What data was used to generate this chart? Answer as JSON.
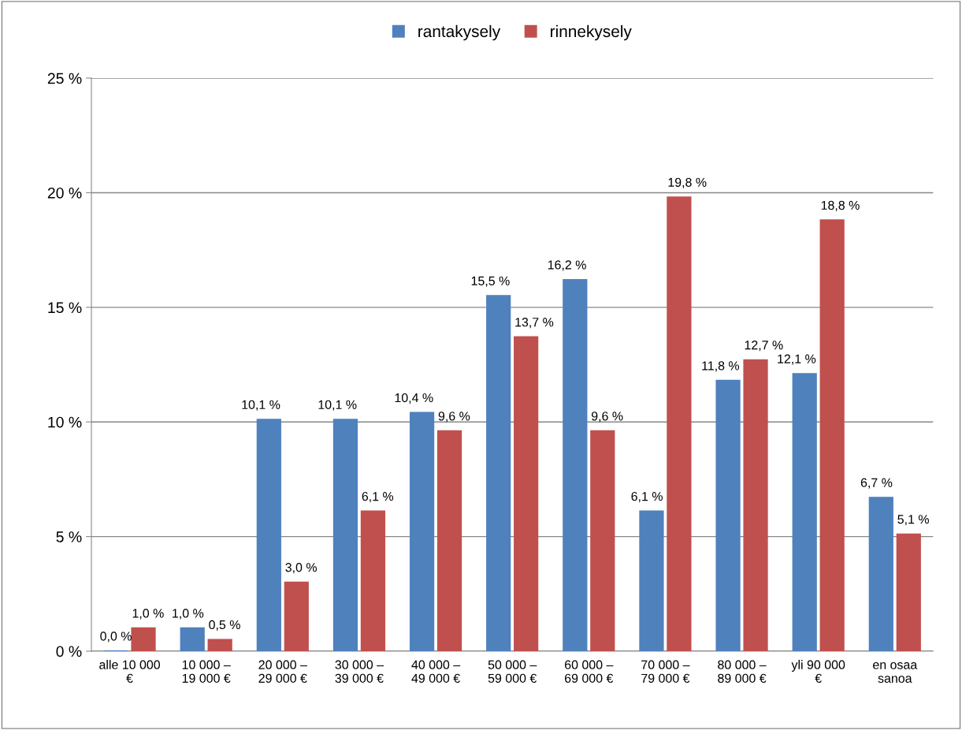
{
  "chart_data": {
    "type": "bar",
    "categories": [
      "alle 10 000\n€",
      "10 000 –\n19 000 €",
      "20 000 –\n29 000 €",
      "30 000 –\n39 000 €",
      "40 000 –\n49 000 €",
      "50 000 –\n59 000 €",
      "60 000 –\n69 000 €",
      "70 000 –\n79 000 €",
      "80 000 –\n89 000 €",
      "yli 90 000\n€",
      "en osaa\nsanoa"
    ],
    "series": [
      {
        "name": "rantakysely",
        "color": "#4f81bd",
        "values": [
          0.0,
          1.0,
          10.1,
          10.1,
          10.4,
          15.5,
          16.2,
          6.1,
          11.8,
          12.1,
          6.7
        ],
        "value_labels": [
          "0,0 %",
          "1,0 %",
          "10,1 %",
          "10,1 %",
          "10,4 %",
          "15,5 %",
          "16,2 %",
          "6,1 %",
          "11,8 %",
          "12,1 %",
          "6,7 %"
        ]
      },
      {
        "name": "rinnekysely",
        "color": "#c0504d",
        "values": [
          1.0,
          0.5,
          3.0,
          6.1,
          9.6,
          13.7,
          9.6,
          19.8,
          12.7,
          18.8,
          5.1
        ],
        "value_labels": [
          "1,0 %",
          "0,5 %",
          "3,0 %",
          "6,1 %",
          "9,6 %",
          "13,7 %",
          "9,6 %",
          "19,8 %",
          "12,7 %",
          "18,8 %",
          "5,1 %"
        ]
      }
    ],
    "ylim": [
      0,
      25
    ],
    "yticks": [
      {
        "value": 0,
        "label": "0 %"
      },
      {
        "value": 5,
        "label": "5 %"
      },
      {
        "value": 10,
        "label": "10 %"
      },
      {
        "value": 15,
        "label": "15 %"
      },
      {
        "value": 20,
        "label": "20 %"
      },
      {
        "value": 25,
        "label": "25 %"
      }
    ],
    "grid": "y",
    "legend": "top"
  }
}
